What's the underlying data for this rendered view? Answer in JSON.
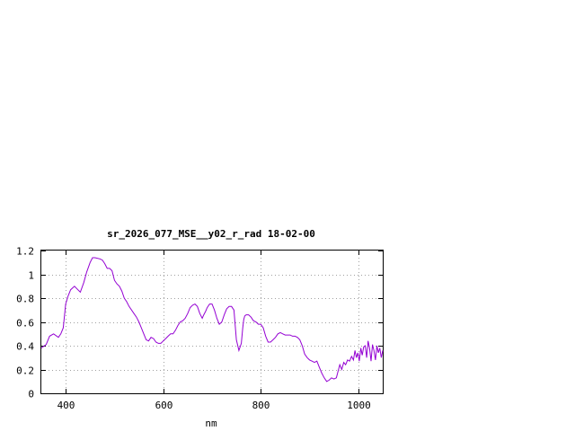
{
  "chart_data": {
    "type": "line",
    "title": "sr_2026_077_MSE__y02_r_rad 18-02-00",
    "xlabel": "nm",
    "ylabel": "",
    "xlim": [
      350,
      1050
    ],
    "ylim": [
      0,
      1.2
    ],
    "grid": true,
    "xticks": [
      400,
      600,
      800,
      1000
    ],
    "xtick_labels": [
      "400",
      "600",
      "800",
      "1000"
    ],
    "yticks": [
      0,
      0.2,
      0.4,
      0.6,
      0.8,
      1,
      1.2
    ],
    "ytick_labels": [
      "0",
      "0.2",
      "0.4",
      "0.6",
      "0.8",
      "1",
      "1.2"
    ],
    "line_color": "#9400d3",
    "series": [
      {
        "x": [
          350,
          360,
          367,
          375,
          385,
          390,
          395,
          400,
          405,
          410,
          418,
          425,
          430,
          437,
          443,
          450,
          455,
          460,
          470,
          475,
          480,
          485,
          490,
          495,
          500,
          505,
          510,
          515,
          520,
          525,
          530,
          540,
          545,
          550,
          555,
          560,
          565,
          570,
          575,
          580,
          585,
          590,
          595,
          600,
          605,
          610,
          615,
          620,
          625,
          630,
          635,
          640,
          645,
          650,
          655,
          660,
          665,
          670,
          675,
          680,
          683,
          687,
          690,
          695,
          700,
          705,
          710,
          715,
          720,
          725,
          730,
          735,
          740,
          745,
          750,
          755,
          760,
          763,
          765,
          767,
          770,
          773,
          775,
          780,
          785,
          790,
          795,
          800,
          805,
          810,
          815,
          820,
          825,
          830,
          835,
          840,
          845,
          850,
          855,
          860,
          865,
          870,
          875,
          880,
          885,
          890,
          895,
          900,
          905,
          910,
          915,
          920,
          925,
          930,
          935,
          940,
          945,
          950,
          955,
          958,
          962,
          966,
          970,
          974,
          978,
          982,
          986,
          990,
          993,
          996,
          999,
          1002,
          1005,
          1008,
          1011,
          1014,
          1017,
          1020,
          1023,
          1026,
          1029,
          1032,
          1035,
          1038,
          1041,
          1044,
          1047,
          1050
        ],
        "y": [
          0.38,
          0.41,
          0.48,
          0.5,
          0.47,
          0.5,
          0.55,
          0.75,
          0.82,
          0.87,
          0.9,
          0.87,
          0.85,
          0.93,
          1.02,
          1.1,
          1.14,
          1.14,
          1.13,
          1.12,
          1.09,
          1.05,
          1.05,
          1.03,
          0.95,
          0.92,
          0.9,
          0.86,
          0.8,
          0.77,
          0.73,
          0.67,
          0.64,
          0.6,
          0.55,
          0.5,
          0.45,
          0.44,
          0.47,
          0.46,
          0.43,
          0.42,
          0.42,
          0.44,
          0.46,
          0.48,
          0.5,
          0.5,
          0.53,
          0.57,
          0.6,
          0.61,
          0.63,
          0.67,
          0.72,
          0.74,
          0.75,
          0.73,
          0.67,
          0.63,
          0.66,
          0.69,
          0.72,
          0.75,
          0.75,
          0.7,
          0.63,
          0.58,
          0.6,
          0.66,
          0.71,
          0.73,
          0.73,
          0.7,
          0.45,
          0.36,
          0.42,
          0.55,
          0.62,
          0.65,
          0.66,
          0.66,
          0.66,
          0.64,
          0.61,
          0.6,
          0.58,
          0.58,
          0.55,
          0.48,
          0.43,
          0.43,
          0.45,
          0.47,
          0.5,
          0.51,
          0.5,
          0.49,
          0.49,
          0.49,
          0.48,
          0.48,
          0.47,
          0.45,
          0.4,
          0.33,
          0.3,
          0.28,
          0.27,
          0.26,
          0.27,
          0.22,
          0.17,
          0.13,
          0.1,
          0.11,
          0.13,
          0.12,
          0.13,
          0.18,
          0.24,
          0.2,
          0.26,
          0.24,
          0.28,
          0.27,
          0.31,
          0.28,
          0.36,
          0.3,
          0.34,
          0.27,
          0.38,
          0.32,
          0.39,
          0.4,
          0.3,
          0.44,
          0.38,
          0.27,
          0.41,
          0.36,
          0.28,
          0.4,
          0.34,
          0.38,
          0.3,
          0.36
        ]
      }
    ]
  }
}
